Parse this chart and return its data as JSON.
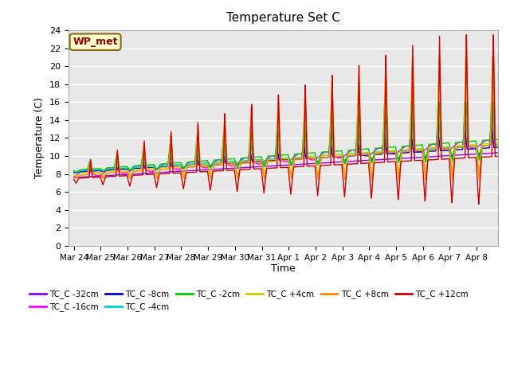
{
  "title": "Temperature Set C",
  "xlabel": "Time",
  "ylabel": "Temperature (C)",
  "ylim": [
    0,
    24
  ],
  "background_color": "#e8e8e8",
  "plot_bg": "#e8e8e8",
  "grid_color": "white",
  "annotation_text": "WP_met",
  "annotation_bg": "#ffffcc",
  "annotation_border": "#8b6914",
  "series_colors": {
    "TC_C -32cm": "#8b00ff",
    "TC_C -16cm": "#ff00ff",
    "TC_C -8cm": "#0000cc",
    "TC_C -4cm": "#00cccc",
    "TC_C -2cm": "#00cc00",
    "TC_C +4cm": "#cccc00",
    "TC_C +8cm": "#ff8800",
    "TC_C +12cm": "#cc0000"
  },
  "tick_labels": [
    "Mar 24",
    "Mar 25",
    "Mar 26",
    "Mar 27",
    "Mar 28",
    "Mar 29",
    "Mar 30",
    "Mar 31",
    "Apr 1",
    "Apr 2",
    "Apr 3",
    "Apr 4",
    "Apr 5",
    "Apr 6",
    "Apr 7",
    "Apr 8"
  ],
  "yticks": [
    0,
    2,
    4,
    6,
    8,
    10,
    12,
    14,
    16,
    18,
    20,
    22,
    24
  ]
}
